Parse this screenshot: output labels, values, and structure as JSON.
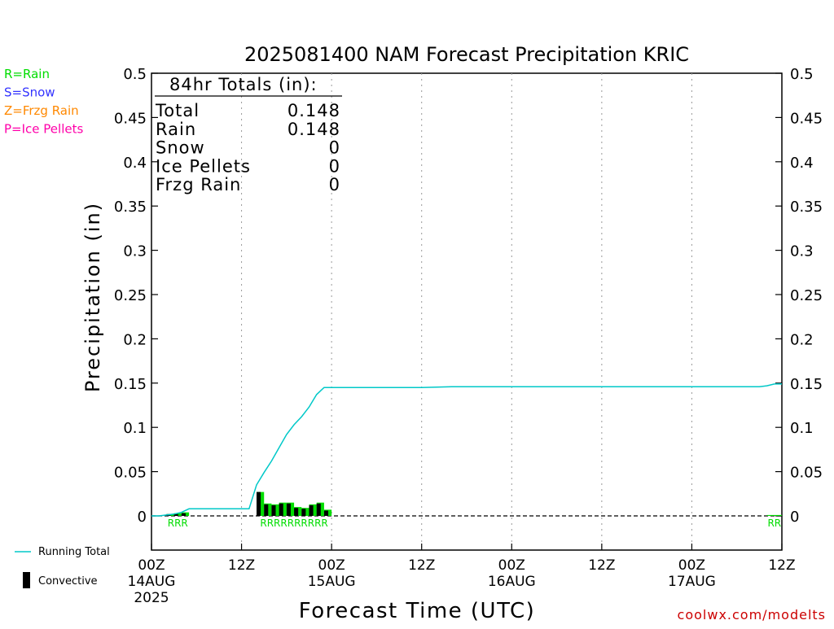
{
  "chart_data": {
    "type": "bar",
    "title": "2025081400 NAM Forecast Precipitation KRIC",
    "xlabel": "Forecast Time (UTC)",
    "ylabel": "Precipitation (in)",
    "ylim": [
      0,
      0.5
    ],
    "x_unit": "forecast hour",
    "x_range": [
      0,
      84
    ],
    "y_ticks": [
      "0",
      "0.05",
      "0.1",
      "0.15",
      "0.2",
      "0.25",
      "0.3",
      "0.35",
      "0.4",
      "0.45",
      "0.5"
    ],
    "x_ticks": [
      {
        "hour": 0,
        "label": "00Z",
        "date": "14AUG",
        "year": "2025"
      },
      {
        "hour": 12,
        "label": "12Z",
        "date": "",
        "year": ""
      },
      {
        "hour": 24,
        "label": "00Z",
        "date": "15AUG",
        "year": ""
      },
      {
        "hour": 36,
        "label": "12Z",
        "date": "",
        "year": ""
      },
      {
        "hour": 48,
        "label": "00Z",
        "date": "16AUG",
        "year": ""
      },
      {
        "hour": 60,
        "label": "12Z",
        "date": "",
        "year": ""
      },
      {
        "hour": 72,
        "label": "00Z",
        "date": "17AUG",
        "year": ""
      },
      {
        "hour": 84,
        "label": "12Z",
        "date": "",
        "year": ""
      }
    ],
    "grid": "vertical dotted at 12-hour ticks",
    "series": [
      {
        "name": "Running Total",
        "kind": "line",
        "color": "#00c8c8",
        "points": [
          [
            0,
            0
          ],
          [
            1,
            0
          ],
          [
            2,
            0.001
          ],
          [
            3,
            0.002
          ],
          [
            4,
            0.004
          ],
          [
            5,
            0.008
          ],
          [
            12,
            0.008
          ],
          [
            13,
            0.008
          ],
          [
            14,
            0.035
          ],
          [
            15,
            0.049
          ],
          [
            16,
            0.062
          ],
          [
            17,
            0.077
          ],
          [
            18,
            0.092
          ],
          [
            19,
            0.103
          ],
          [
            20,
            0.112
          ],
          [
            21,
            0.123
          ],
          [
            22,
            0.137
          ],
          [
            23,
            0.145
          ],
          [
            36,
            0.145
          ],
          [
            40,
            0.146
          ],
          [
            81,
            0.146
          ],
          [
            82,
            0.147
          ],
          [
            83,
            0.149
          ],
          [
            84,
            0.149
          ]
        ]
      },
      {
        "name": "Rain",
        "kind": "bar",
        "color": "#00dd00",
        "hours": [
          3,
          4,
          5,
          15,
          16,
          17,
          18,
          19,
          20,
          21,
          22,
          23,
          24,
          83,
          84
        ],
        "values": [
          0.002,
          0.003,
          0.004,
          0.027,
          0.014,
          0.013,
          0.015,
          0.015,
          0.01,
          0.009,
          0.013,
          0.015,
          0.007,
          0.001,
          0.001
        ]
      },
      {
        "name": "Convective",
        "kind": "bar",
        "color": "#000000",
        "hours": [
          3,
          4,
          5,
          15,
          16,
          17,
          18,
          19,
          20,
          21,
          22,
          23,
          24
        ],
        "values": [
          0.002,
          0.002,
          0.003,
          0.027,
          0.013,
          0.012,
          0.014,
          0.014,
          0.009,
          0.008,
          0.012,
          0.014,
          0.006
        ]
      }
    ],
    "ptype_groups": [
      {
        "label": "RRR",
        "start_hour": 3,
        "end_hour": 5
      },
      {
        "label": "RRRRRRRRRR",
        "start_hour": 15,
        "end_hour": 24
      },
      {
        "label": "RR",
        "start_hour": 83,
        "end_hour": 84
      }
    ]
  },
  "type_legend": [
    {
      "text": "R=Rain",
      "color": "#00dd00"
    },
    {
      "text": "S=Snow",
      "color": "#3333ff"
    },
    {
      "text": "Z=Frzg Rain",
      "color": "#ff8800"
    },
    {
      "text": "P=Ice Pellets",
      "color": "#ff00aa"
    }
  ],
  "totals": {
    "heading": "84hr Totals (in):",
    "rows": [
      {
        "label": "Total",
        "value": "0.148"
      },
      {
        "label": "Rain",
        "value": "0.148"
      },
      {
        "label": "Snow",
        "value": "0"
      },
      {
        "label": "Ice Pellets",
        "value": "0"
      },
      {
        "label": "Frzg Rain",
        "value": "0"
      }
    ]
  },
  "legend": {
    "running_total_label": "Running Total",
    "convective_label": "Convective"
  },
  "credit": "coolwx.com/modelts"
}
